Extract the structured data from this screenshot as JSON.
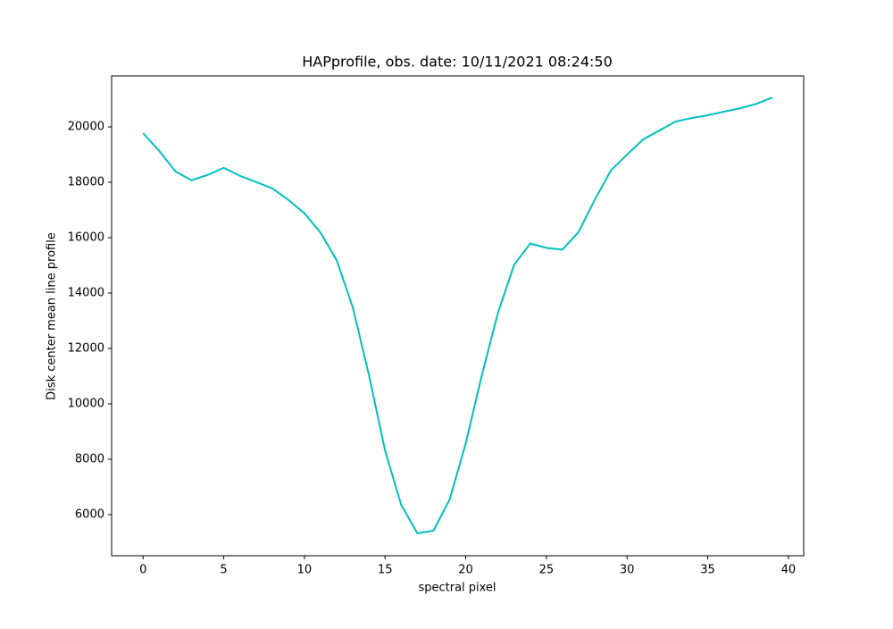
{
  "chart_data": {
    "type": "line",
    "title": "HAPprofile, obs. date: 10/11/2021 08:24:50",
    "xlabel": "spectral pixel",
    "ylabel": "Disk center mean line profile",
    "x": [
      0,
      1,
      2,
      3,
      4,
      5,
      6,
      7,
      8,
      9,
      10,
      11,
      12,
      13,
      14,
      15,
      16,
      17,
      18,
      19,
      20,
      21,
      22,
      23,
      24,
      25,
      26,
      27,
      28,
      29,
      30,
      31,
      32,
      33,
      34,
      35,
      36,
      37,
      38,
      39
    ],
    "series": [
      {
        "color": "#00bfbf",
        "values": [
          19775,
          19133,
          18395,
          18073,
          18266,
          18523,
          18234,
          18009,
          17784,
          17367,
          16885,
          16179,
          15184,
          13480,
          11040,
          8310,
          6353,
          5326,
          5420,
          6540,
          8570,
          11040,
          13290,
          15020,
          15790,
          15630,
          15570,
          16210,
          17370,
          18430,
          19000,
          19550,
          19870,
          20190,
          20320,
          20420,
          20550,
          20670,
          20830,
          21060
        ]
      }
    ],
    "xlim": [
      -1.95,
      40.95
    ],
    "ylim": [
      4515,
      21840
    ],
    "xticks": [
      0,
      5,
      10,
      15,
      20,
      25,
      30,
      35,
      40
    ],
    "yticks": [
      6000,
      8000,
      10000,
      12000,
      14000,
      16000,
      18000,
      20000
    ]
  }
}
